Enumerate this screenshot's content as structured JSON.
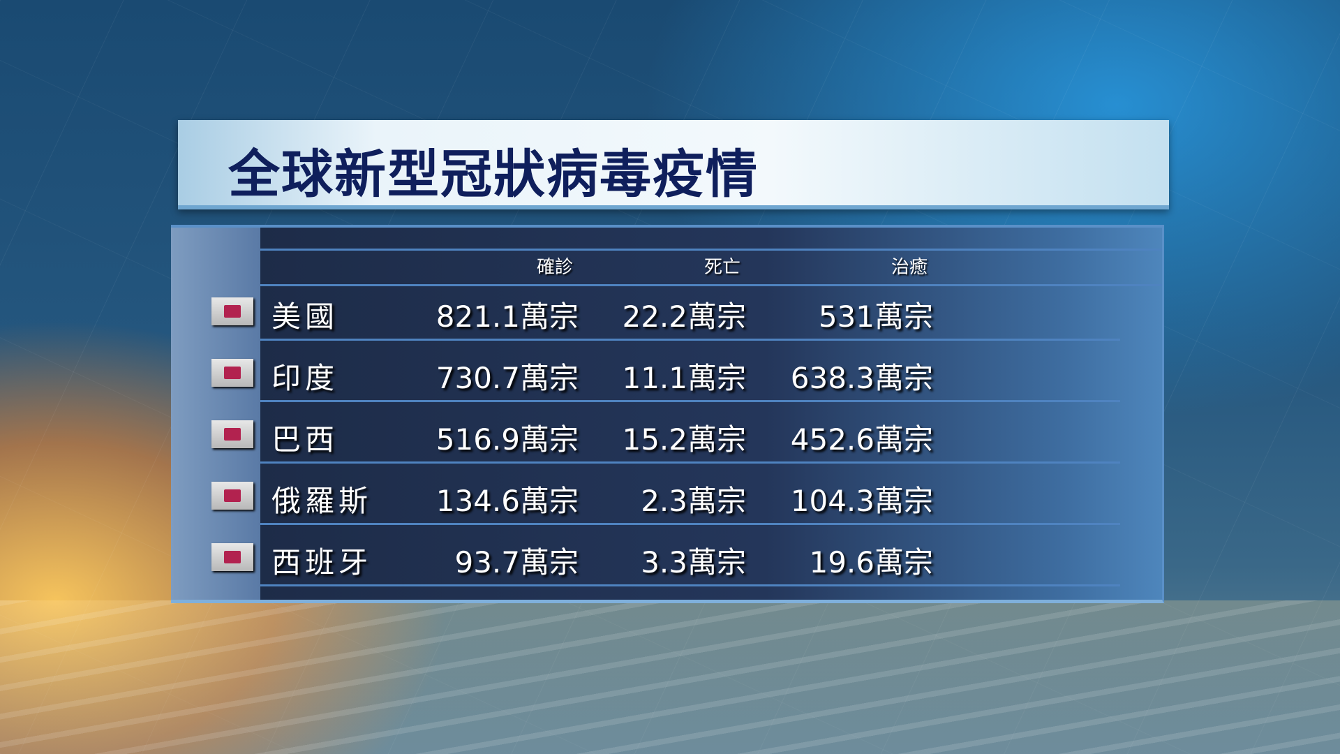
{
  "title": "全球新型冠狀病毒疫情",
  "columns": [
    "確診",
    "死亡",
    "治癒"
  ],
  "rows": [
    {
      "country": "美國",
      "confirmed": "821.1萬宗",
      "deaths": "22.2萬宗",
      "recovered": "531萬宗"
    },
    {
      "country": "印度",
      "confirmed": "730.7萬宗",
      "deaths": "11.1萬宗",
      "recovered": "638.3萬宗"
    },
    {
      "country": "巴西",
      "confirmed": "516.9萬宗",
      "deaths": "15.2萬宗",
      "recovered": "452.6萬宗"
    },
    {
      "country": "俄羅斯",
      "confirmed": "134.6萬宗",
      "deaths": "2.3萬宗",
      "recovered": "104.3萬宗"
    },
    {
      "country": "西班牙",
      "confirmed": "93.7萬宗",
      "deaths": "3.3萬宗",
      "recovered": "19.6萬宗"
    }
  ],
  "colors": {
    "title": "#0f1f5c",
    "bullet": "#b2224f"
  }
}
